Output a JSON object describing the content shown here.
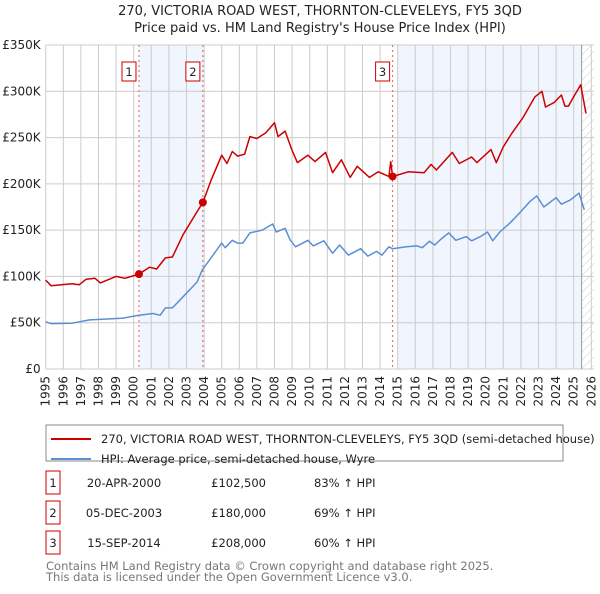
{
  "chart_data": {
    "type": "line",
    "title": "270, VICTORIA ROAD WEST, THORNTON-CLEVELEYS, FY5 3QD",
    "subtitle": "Price paid vs. HM Land Registry's House Price Index (HPI)",
    "xlim": [
      1995,
      2026.2
    ],
    "ylim": [
      0,
      350000
    ],
    "y_ticks": [
      0,
      50000,
      100000,
      150000,
      200000,
      250000,
      300000,
      350000
    ],
    "y_tick_labels": [
      "£0",
      "£50K",
      "£100K",
      "£150K",
      "£200K",
      "£250K",
      "£300K",
      "£350K"
    ],
    "x_ticks": [
      1995,
      1996,
      1997,
      1998,
      1999,
      2000,
      2001,
      2002,
      2003,
      2004,
      2005,
      2006,
      2007,
      2008,
      2009,
      2010,
      2011,
      2012,
      2013,
      2014,
      2015,
      2016,
      2017,
      2018,
      2019,
      2020,
      2021,
      2022,
      2023,
      2024,
      2025,
      2026
    ],
    "grid": true,
    "shaded_ranges": [
      [
        2000.3,
        2003.93
      ],
      [
        2015.0,
        2025.45
      ]
    ],
    "forecast_hatch_from": 2025.45,
    "series": [
      {
        "name": "270, VICTORIA ROAD WEST, THORNTON-CLEVELEYS, FY5 3QD (semi-detached house)",
        "color": "#cc0000",
        "x": [
          1995.0,
          1995.3,
          1996.5,
          1996.9,
          1997.3,
          1997.8,
          1998.1,
          1999.0,
          1999.5,
          2000.3,
          2000.9,
          2001.3,
          2001.8,
          2002.2,
          2002.8,
          2003.6,
          2003.93,
          2004.4,
          2005.0,
          2005.3,
          2005.6,
          2005.9,
          2006.3,
          2006.6,
          2007.0,
          2007.5,
          2008.0,
          2008.2,
          2008.6,
          2009.0,
          2009.3,
          2009.9,
          2010.3,
          2010.9,
          2011.3,
          2011.8,
          2012.3,
          2012.7,
          2013.4,
          2013.9,
          2014.5,
          2014.6,
          2014.71,
          2015.6,
          2016.5,
          2016.9,
          2017.2,
          2018.1,
          2018.5,
          2019.2,
          2019.5,
          2020.3,
          2020.6,
          2021.0,
          2021.5,
          2022.1,
          2022.8,
          2023.2,
          2023.4,
          2023.9,
          2024.3,
          2024.5,
          2024.7,
          2025.0,
          2025.4,
          2025.7
        ],
        "y": [
          96000,
          90000,
          92000,
          91000,
          97000,
          98000,
          93000,
          100000,
          98000,
          102500,
          110000,
          108000,
          120000,
          121000,
          145000,
          170000,
          180000,
          204000,
          231000,
          222000,
          235000,
          230000,
          232000,
          251000,
          249000,
          255000,
          266000,
          251000,
          257000,
          236000,
          223000,
          231000,
          224000,
          234000,
          212000,
          226000,
          207000,
          219000,
          207000,
          213000,
          208000,
          224000,
          208000,
          213000,
          212000,
          221000,
          215000,
          234000,
          222000,
          229000,
          223000,
          237000,
          223000,
          240000,
          255000,
          271000,
          294000,
          300000,
          283000,
          288000,
          296000,
          284000,
          284000,
          294000,
          307000,
          276000
        ]
      },
      {
        "name": "HPI: Average price, semi-detached house, Wyre",
        "color": "#5b8fd4",
        "x": [
          1995.0,
          1995.3,
          1996.5,
          1997.5,
          1998.5,
          1999.4,
          2000.3,
          2001.1,
          2001.5,
          2001.8,
          2002.2,
          2002.8,
          2003.6,
          2003.9,
          2005.0,
          2005.2,
          2005.6,
          2005.9,
          2006.2,
          2006.6,
          2007.3,
          2007.9,
          2008.1,
          2008.6,
          2008.9,
          2009.2,
          2009.6,
          2009.9,
          2010.2,
          2010.8,
          2011.3,
          2011.7,
          2012.2,
          2012.9,
          2013.3,
          2013.8,
          2014.1,
          2014.5,
          2014.7,
          2015.5,
          2016.1,
          2016.4,
          2016.8,
          2017.1,
          2017.5,
          2017.9,
          2018.3,
          2018.9,
          2019.2,
          2019.7,
          2020.1,
          2020.4,
          2020.8,
          2021.4,
          2021.9,
          2022.5,
          2022.9,
          2023.3,
          2024.0,
          2024.3,
          2024.8,
          2025.3,
          2025.6
        ],
        "y": [
          51000,
          49000,
          49500,
          53000,
          54000,
          55000,
          58000,
          60000,
          58000,
          66000,
          66000,
          78000,
          94000,
          107000,
          136000,
          131000,
          139000,
          136000,
          136000,
          147000,
          150000,
          156600,
          148000,
          152000,
          139000,
          132000,
          136000,
          139000,
          133000,
          138500,
          125000,
          134000,
          123000,
          130000,
          122000,
          127000,
          123000,
          132000,
          130000,
          132000,
          133000,
          131000,
          138000,
          134000,
          141000,
          147000,
          139000,
          143000,
          138500,
          143000,
          148000,
          138500,
          148000,
          158000,
          168000,
          180700,
          187000,
          175000,
          185000,
          178000,
          182500,
          190000,
          172000
        ]
      }
    ],
    "sales": [
      {
        "label": "1",
        "x": 2000.3,
        "price": 102500,
        "date": "20-APR-2000",
        "price_text": "£102,500",
        "hpi_text": "83% ↑ HPI"
      },
      {
        "label": "2",
        "x": 2003.93,
        "price": 180000,
        "date": "05-DEC-2003",
        "price_text": "£180,000",
        "hpi_text": "69% ↑ HPI"
      },
      {
        "label": "3",
        "x": 2014.71,
        "price": 208000,
        "date": "15-SEP-2014",
        "price_text": "£208,000",
        "hpi_text": "60% ↑ HPI"
      }
    ],
    "legend": {
      "placement": "below",
      "entries": [
        "270, VICTORIA ROAD WEST, THORNTON-CLEVELEYS, FY5 3QD (semi-detached house)",
        "HPI: Average price, semi-detached house, Wyre"
      ]
    }
  },
  "footer": {
    "line1": "Contains HM Land Registry data © Crown copyright and database right 2025.",
    "line2": "This data is licensed under the Open Government Licence v3.0."
  }
}
